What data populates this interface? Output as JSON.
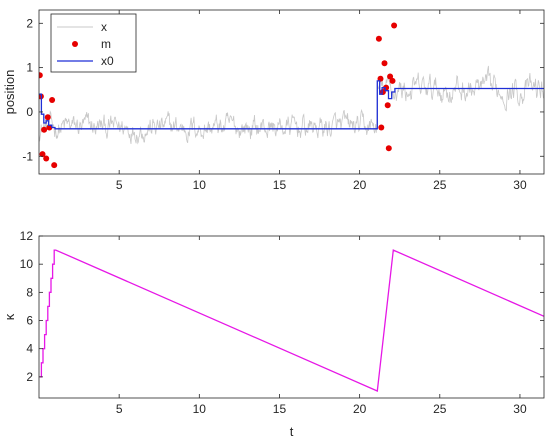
{
  "chart_data": [
    {
      "type": "line",
      "ylabel": "position",
      "xlabel": "",
      "xlim": [
        0,
        31.5
      ],
      "ylim": [
        -1.4,
        2.3
      ],
      "xticks": [
        5,
        10,
        15,
        20,
        25,
        30
      ],
      "yticks": [
        -1,
        0,
        1,
        2
      ],
      "legend": {
        "placement": "top-left",
        "entries": [
          "x",
          "m",
          "x0"
        ]
      },
      "colors": {
        "x": "#c8c8c8",
        "m": "#e60000",
        "x0": "#1f2fd6"
      },
      "series": [
        {
          "name": "x",
          "style": "noisy-line",
          "segments": [
            {
              "x_start": 0,
              "x_end": 21.1,
              "mean": -0.35,
              "amplitude": 0.55
            },
            {
              "x_start": 21.1,
              "x_end": 31.5,
              "mean": 0.5,
              "amplitude": 0.6
            }
          ]
        },
        {
          "name": "m",
          "style": "markers",
          "points": [
            [
              0.05,
              0.83
            ],
            [
              0.12,
              0.35
            ],
            [
              0.22,
              -0.95
            ],
            [
              0.32,
              -0.4
            ],
            [
              0.45,
              -1.05
            ],
            [
              0.55,
              -0.12
            ],
            [
              0.65,
              -0.35
            ],
            [
              0.82,
              0.27
            ],
            [
              0.95,
              -1.2
            ],
            [
              21.2,
              1.65
            ],
            [
              21.3,
              0.75
            ],
            [
              21.35,
              -0.35
            ],
            [
              21.45,
              0.45
            ],
            [
              21.55,
              1.1
            ],
            [
              21.65,
              0.55
            ],
            [
              21.75,
              0.15
            ],
            [
              21.82,
              -0.82
            ],
            [
              21.9,
              0.8
            ],
            [
              22.05,
              0.7
            ],
            [
              22.15,
              1.95
            ]
          ]
        },
        {
          "name": "x0",
          "style": "step-line",
          "points": [
            [
              0,
              0.4
            ],
            [
              0.15,
              0.4
            ],
            [
              0.15,
              -0.05
            ],
            [
              0.3,
              -0.05
            ],
            [
              0.3,
              -0.25
            ],
            [
              0.45,
              -0.25
            ],
            [
              0.45,
              -0.2
            ],
            [
              0.6,
              -0.2
            ],
            [
              0.6,
              -0.3
            ],
            [
              0.8,
              -0.3
            ],
            [
              0.8,
              -0.35
            ],
            [
              1.0,
              -0.35
            ],
            [
              1.0,
              -0.38
            ],
            [
              21.1,
              -0.38
            ],
            [
              21.1,
              0.7
            ],
            [
              21.25,
              0.7
            ],
            [
              21.25,
              0.4
            ],
            [
              21.4,
              0.4
            ],
            [
              21.4,
              0.55
            ],
            [
              21.6,
              0.55
            ],
            [
              21.6,
              0.48
            ],
            [
              21.8,
              0.48
            ],
            [
              21.8,
              0.3
            ],
            [
              22.0,
              0.3
            ],
            [
              22.0,
              0.45
            ],
            [
              22.2,
              0.45
            ],
            [
              22.2,
              0.53
            ],
            [
              31.5,
              0.53
            ]
          ]
        }
      ]
    },
    {
      "type": "line",
      "ylabel": "κ",
      "xlabel": "t",
      "xlim": [
        0,
        31.5
      ],
      "ylim": [
        0.5,
        12
      ],
      "xticks": [
        5,
        10,
        15,
        20,
        25,
        30
      ],
      "yticks": [
        2,
        4,
        6,
        8,
        10,
        12
      ],
      "colors": {
        "kappa": "#e617e6"
      },
      "series": [
        {
          "style": "line",
          "points": [
            [
              0.05,
              2
            ],
            [
              0.15,
              2
            ],
            [
              0.15,
              3
            ],
            [
              0.25,
              3
            ],
            [
              0.25,
              4
            ],
            [
              0.35,
              4
            ],
            [
              0.35,
              5
            ],
            [
              0.45,
              5
            ],
            [
              0.45,
              6
            ],
            [
              0.55,
              6
            ],
            [
              0.55,
              7
            ],
            [
              0.65,
              7
            ],
            [
              0.65,
              8
            ],
            [
              0.75,
              8
            ],
            [
              0.75,
              9
            ],
            [
              0.85,
              9
            ],
            [
              0.85,
              10
            ],
            [
              0.95,
              10
            ],
            [
              0.95,
              11
            ],
            [
              1.05,
              11
            ],
            [
              21.1,
              1
            ],
            [
              21.2,
              2
            ],
            [
              21.3,
              3
            ],
            [
              21.4,
              4
            ],
            [
              21.5,
              5
            ],
            [
              21.6,
              6
            ],
            [
              21.7,
              7
            ],
            [
              21.8,
              8
            ],
            [
              21.9,
              9
            ],
            [
              22.0,
              10
            ],
            [
              22.1,
              11
            ],
            [
              31.5,
              6.3
            ]
          ]
        }
      ]
    }
  ]
}
